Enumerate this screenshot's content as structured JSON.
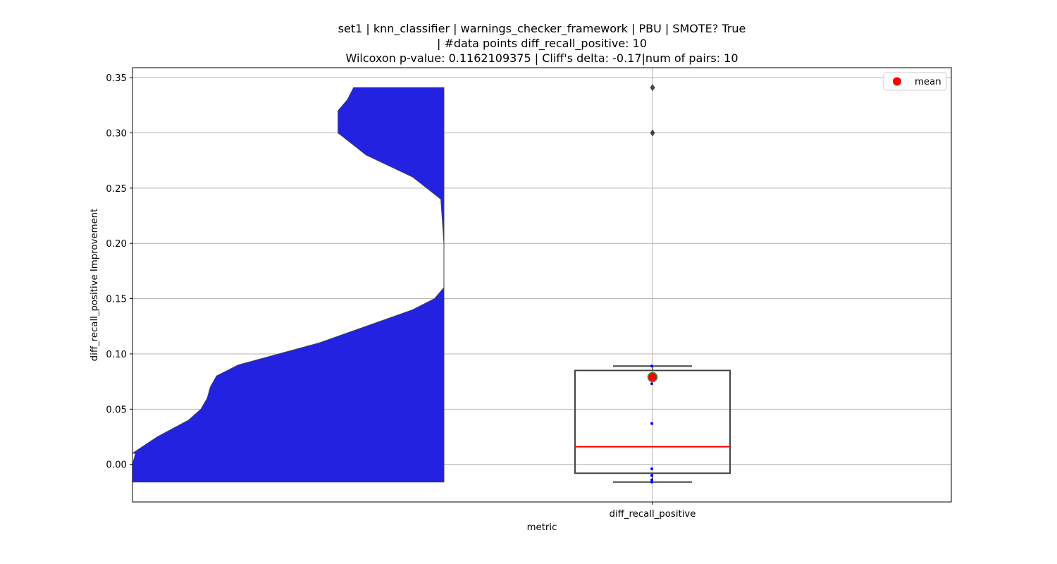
{
  "chart_data": {
    "type": "violin+box",
    "title_lines": [
      "set1 | knn_classifier | warnings_checker_framework | PBU | SMOTE? True",
      "| #data points diff_recall_positive: 10",
      "Wilcoxon p-value: 0.1162109375 | Cliff's delta: -0.17|num of pairs: 10"
    ],
    "xlabel": "metric",
    "ylabel": "diff_recall_positive Improvement",
    "categories": [
      "diff_recall_positive"
    ],
    "ylim": [
      -0.034,
      0.359
    ],
    "yticks": [
      0.0,
      0.05,
      0.1,
      0.15,
      0.2,
      0.25,
      0.3,
      0.35
    ],
    "ytick_labels": [
      "0.00",
      "0.05",
      "0.10",
      "0.15",
      "0.20",
      "0.25",
      "0.30",
      "0.35"
    ],
    "grid": true,
    "legend": {
      "position": "top-right",
      "entries": [
        {
          "label": "mean",
          "marker": "circle",
          "color": "#ff0000"
        }
      ]
    },
    "violin": {
      "color": "#2222e0",
      "side": "left-half",
      "range": [
        -0.016,
        0.341
      ],
      "profile": [
        [
          -0.016,
          1.0
        ],
        [
          0.0,
          1.0
        ],
        [
          0.01,
          0.99
        ],
        [
          0.01,
          1.0
        ],
        [
          0.025,
          0.92
        ],
        [
          0.04,
          0.82
        ],
        [
          0.05,
          0.78
        ],
        [
          0.06,
          0.76
        ],
        [
          0.07,
          0.75
        ],
        [
          0.08,
          0.73
        ],
        [
          0.09,
          0.66
        ],
        [
          0.1,
          0.53
        ],
        [
          0.11,
          0.4
        ],
        [
          0.125,
          0.25
        ],
        [
          0.14,
          0.1
        ],
        [
          0.15,
          0.03
        ],
        [
          0.16,
          0.0
        ],
        [
          0.2,
          0.0
        ],
        [
          0.24,
          0.01
        ],
        [
          0.26,
          0.1
        ],
        [
          0.28,
          0.25
        ],
        [
          0.3,
          0.34
        ],
        [
          0.32,
          0.34
        ],
        [
          0.33,
          0.31
        ],
        [
          0.341,
          0.29
        ]
      ]
    },
    "box": {
      "q1": -0.008,
      "median": 0.016,
      "q3": 0.085,
      "whisker_low": -0.016,
      "whisker_high": 0.089,
      "mean": 0.079,
      "outliers": [
        0.341,
        0.3
      ],
      "points": [
        0.089,
        0.078,
        0.073,
        0.037,
        -0.004,
        -0.01,
        -0.014,
        -0.016
      ],
      "box_color": "#444444",
      "median_color": "#ff0000",
      "mean_fill": "#ff0000",
      "mean_edge": "#3a8a3a",
      "point_color": "#0000ff"
    }
  }
}
